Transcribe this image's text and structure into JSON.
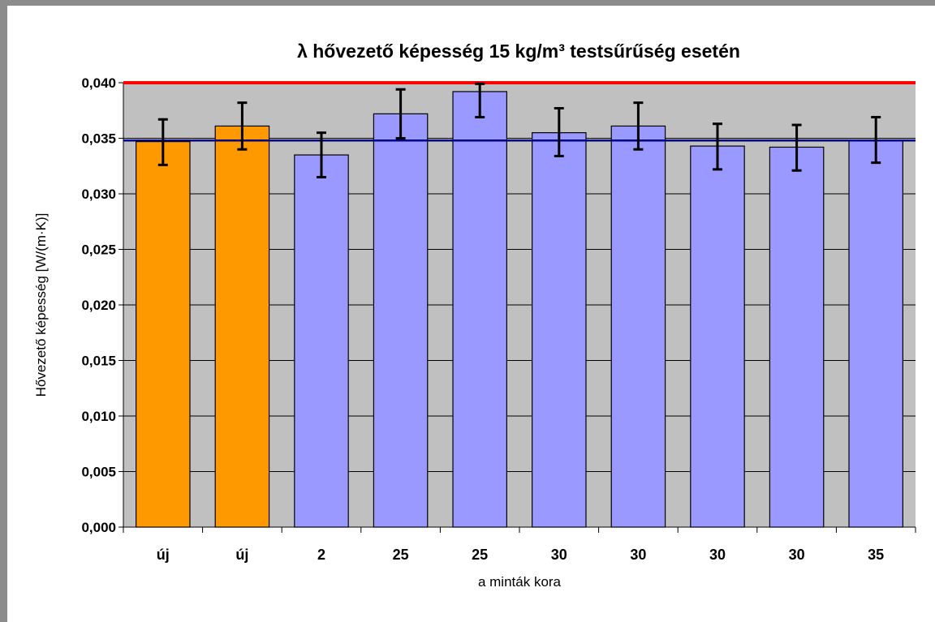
{
  "chart_data": {
    "type": "bar",
    "title": "λ hővezető képesség 15 kg/m³ testsűrűség esetén",
    "xlabel": "a minták kora",
    "ylabel": "Hővezető képesség [W/(m·K)]",
    "categories": [
      "új",
      "új",
      "2",
      "25",
      "25",
      "30",
      "30",
      "30",
      "30",
      "35"
    ],
    "values": [
      0.0347,
      0.0361,
      0.0335,
      0.0372,
      0.0392,
      0.0355,
      0.0361,
      0.0343,
      0.0342,
      0.0348
    ],
    "error_low": [
      0.0326,
      0.034,
      0.0315,
      0.035,
      0.0369,
      0.0334,
      0.034,
      0.0322,
      0.0321,
      0.0328
    ],
    "error_high": [
      0.0367,
      0.0382,
      0.0355,
      0.0394,
      0.0399,
      0.0377,
      0.0382,
      0.0363,
      0.0362,
      0.0369
    ],
    "bar_colors": [
      "#ff9900",
      "#ff9900",
      "#9999ff",
      "#9999ff",
      "#9999ff",
      "#9999ff",
      "#9999ff",
      "#9999ff",
      "#9999ff",
      "#9999ff"
    ],
    "yticks": [
      "0,000",
      "0,005",
      "0,010",
      "0,015",
      "0,020",
      "0,025",
      "0,030",
      "0,035",
      "0,040"
    ],
    "ylim": [
      0,
      0.04
    ],
    "ytick_step": 0.005,
    "reference_lines": [
      {
        "value": 0.04,
        "color": "#ff0000"
      },
      {
        "value": 0.0348,
        "color": "#000080"
      }
    ],
    "plot_background": "#c0c0c0",
    "grid": true,
    "legend": "none"
  }
}
